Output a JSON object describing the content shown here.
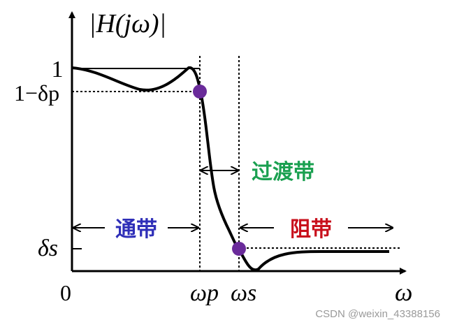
{
  "y_axis_label": "|H(jω)|",
  "labels": {
    "one": "1",
    "one_minus_delta_p": "1−δp",
    "delta_s": "δs",
    "origin": "0",
    "omega_p": "ωp",
    "omega_s": "ωs",
    "omega": "ω"
  },
  "bands": {
    "passband": {
      "text": "通带",
      "color": "#2f2fb8"
    },
    "transition": {
      "text": "过渡带",
      "color": "#1aa050"
    },
    "stopband": {
      "text": "阻带",
      "color": "#c8101c"
    }
  },
  "marker_color": "#6a2b9a",
  "watermark": "CSDN @weixin_43388156"
}
